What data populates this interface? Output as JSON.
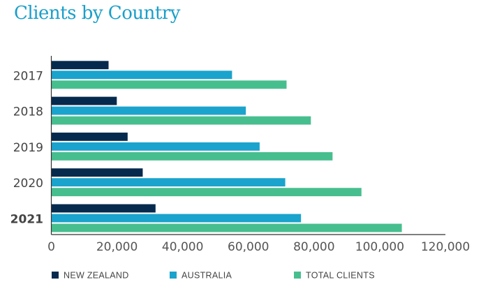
{
  "chart_data": {
    "type": "bar",
    "orientation": "horizontal",
    "title": "Clients by Country",
    "categories": [
      "2017",
      "2018",
      "2019",
      "2020",
      "2021"
    ],
    "highlighted_category": "2021",
    "series": [
      {
        "name": "NEW ZEALAND",
        "color": "#052a4d",
        "values": [
          17500,
          20000,
          23300,
          27900,
          31800
        ]
      },
      {
        "name": "AUSTRALIA",
        "color": "#1aa3cc",
        "values": [
          55100,
          59300,
          63500,
          71300,
          76100
        ]
      },
      {
        "name": "TOTAL CLIENTS",
        "color": "#47be8e",
        "values": [
          71700,
          79100,
          85700,
          94500,
          106800
        ]
      }
    ],
    "xlim": [
      0,
      120000
    ],
    "xticks": [
      0,
      20000,
      40000,
      60000,
      80000,
      100000,
      120000
    ],
    "xtick_labels": [
      "0",
      "20,000",
      "40,000",
      "60,000",
      "80,000",
      "100,000",
      "120,000"
    ],
    "xlabel": "",
    "ylabel": "",
    "grid": false,
    "legend": "bottom"
  }
}
